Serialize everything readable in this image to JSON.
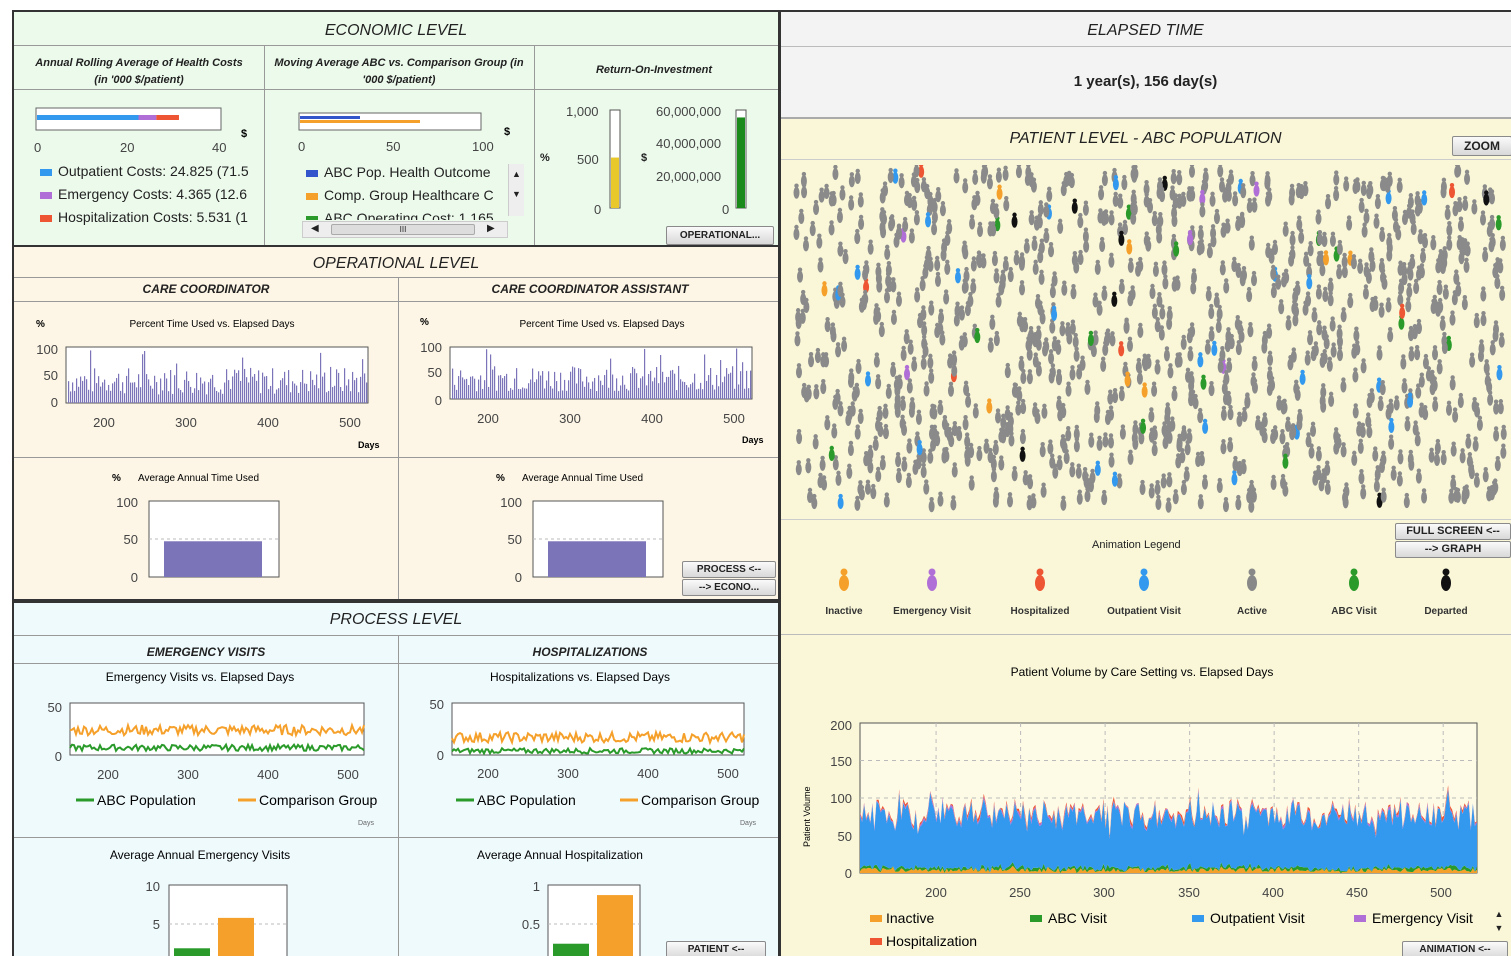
{
  "colors": {
    "econ_bg": "#ecfaec",
    "oper_bg": "#fdf6e6",
    "proc_bg": "#effafd",
    "patient_bg": "#f9f7d8",
    "outpatient": "#3399ee",
    "emergency": "#b06fd6",
    "hospital": "#ee5533",
    "abc": "#2a9a2a",
    "comparison": "#f5a02a",
    "purple_bar": "#7b74b8",
    "inactive": "#f5a02a",
    "active": "#888888",
    "departed": "#111111"
  },
  "economic": {
    "title": "ECONOMIC LEVEL",
    "col1_title": "Annual Rolling Average of Health Costs (in '000 $/patient)",
    "col2_title": "Moving Average ABC vs. Comparison Group (in '000 $/patient)",
    "col3_title": "Return-On-Investment",
    "col1_unit": "$",
    "col1_ticks": [
      "0",
      "20",
      "40"
    ],
    "col1_bars": {
      "outpatient": 24.825,
      "emergency": 4.365,
      "hospitalization": 5.531,
      "max": 45
    },
    "col1_legend": [
      "Outpatient Costs: 24.825 (71.5",
      "Emergency Costs: 4.365 (12.6",
      "Hospitalization Costs: 5.531 (1"
    ],
    "col2_unit": "$",
    "col2_ticks": [
      "0",
      "50",
      "100"
    ],
    "col2_legend": [
      "ABC Pop. Health Outcome",
      "Comp. Group Healthcare C",
      "ABC Operating Cost: 1.165"
    ],
    "col2_scroll": "III",
    "col3_pct_label": "%",
    "col3_pct_ticks": [
      "1,000",
      "500",
      "0"
    ],
    "col3_pct_value": 520,
    "col3_usd_label": "$",
    "col3_usd_ticks": [
      "60,000,000",
      "40,000,000",
      "20,000,000",
      "0"
    ],
    "col3_usd_value": 56000000,
    "operational_button": "OPERATIONAL..."
  },
  "operational": {
    "title": "OPERATIONAL LEVEL",
    "cc_title": "CARE COORDINATOR",
    "cca_title": "CARE COORDINATOR ASSISTANT",
    "pct": "%",
    "chart_title": "Percent Time Used vs. Elapsed Days",
    "y_ticks": [
      "100",
      "50",
      "0"
    ],
    "x_ticks": [
      "200",
      "300",
      "400",
      "500"
    ],
    "x_label": "Days",
    "avg_title": "Average Annual Time Used",
    "avg_ticks": [
      "100",
      "50",
      "0"
    ],
    "cc_avg": 47,
    "cca_avg": 47,
    "process_button": "PROCESS <--",
    "econo_button": "--> ECONO..."
  },
  "process": {
    "title": "PROCESS LEVEL",
    "ev_title": "EMERGENCY VISITS",
    "hosp_title": "HOSPITALIZATIONS",
    "ev_chart_title": "Emergency Visits vs. Elapsed Days",
    "hosp_chart_title": "Hospitalizations vs. Elapsed Days",
    "y_ticks": [
      "50",
      "0"
    ],
    "x_ticks": [
      "200",
      "300",
      "400",
      "500"
    ],
    "legend_abc": "ABC Population",
    "legend_comp": "Comparison Group",
    "days": "Days",
    "ev_avg_title": "Average Annual Emergency Visits",
    "hosp_avg_title": "Average Annual Hospitalization",
    "ev_avg_ticks": [
      "10",
      "5"
    ],
    "hosp_avg_ticks": [
      "1",
      "0.5"
    ],
    "ev_avg_values": {
      "abc": 2.2,
      "comparison": 6.2
    },
    "hosp_avg_values": {
      "abc": 0.28,
      "comparison": 0.92
    },
    "patient_button": "PATIENT <--"
  },
  "elapsed": {
    "title": "ELAPSED TIME",
    "value": "1 year(s), 156 day(s)"
  },
  "patient": {
    "title": "PATIENT LEVEL - ABC POPULATION",
    "zoom_button": "ZOOM",
    "fullscreen_button": "FULL SCREEN <--",
    "graph_button": "--> GRAPH",
    "animation_legend_title": "Animation Legend",
    "legend": [
      {
        "label": "Inactive",
        "icon": "person-inactive-icon",
        "color": "#f5a02a"
      },
      {
        "label": "Emergency Visit",
        "icon": "person-emergency-icon",
        "color": "#b06fd6"
      },
      {
        "label": "Hospitalized",
        "icon": "person-hospitalized-icon",
        "color": "#ee5533"
      },
      {
        "label": "Outpatient Visit",
        "icon": "person-outpatient-icon",
        "color": "#3399ee"
      },
      {
        "label": "Active",
        "icon": "person-active-icon",
        "color": "#888888"
      },
      {
        "label": "ABC Visit",
        "icon": "person-abc-icon",
        "color": "#2a9a2a"
      },
      {
        "label": "Departed",
        "icon": "person-departed-icon",
        "color": "#111111"
      }
    ],
    "volume_title": "Patient Volume by Care Setting vs. Elapsed Days",
    "volume_ylabel": "Patient Volume",
    "volume_y_ticks": [
      "200",
      "150",
      "100",
      "50",
      "0"
    ],
    "volume_x_ticks": [
      "200",
      "250",
      "300",
      "350",
      "400",
      "450",
      "500"
    ],
    "volume_legend": [
      "Inactive",
      "ABC Visit",
      "Outpatient Visit",
      "Emergency Visit",
      "Hospitalization"
    ],
    "animation_button": "ANIMATION <--"
  },
  "chart_data": [
    {
      "type": "bar",
      "title": "Annual Rolling Average of Health Costs (in '000 $/patient)",
      "categories": [
        "Outpatient Costs",
        "Emergency Costs",
        "Hospitalization Costs"
      ],
      "values": [
        24.825,
        4.365,
        5.531
      ],
      "xlim": [
        0,
        45
      ]
    },
    {
      "type": "bar",
      "title": "Return-On-Investment",
      "series": [
        {
          "name": "%",
          "values": [
            520
          ]
        },
        {
          "name": "$",
          "values": [
            56000000
          ]
        }
      ]
    },
    {
      "type": "bar",
      "title": "Percent Time Used vs. Elapsed Days",
      "xlabel": "Days",
      "ylim": [
        0,
        100
      ],
      "xlim": [
        150,
        520
      ]
    },
    {
      "type": "bar",
      "title": "Average Annual Time Used",
      "values": [
        47
      ],
      "ylim": [
        0,
        100
      ]
    },
    {
      "type": "line",
      "title": "Emergency Visits vs. Elapsed Days",
      "series": [
        {
          "name": "ABC Population",
          "values": [
            8
          ]
        },
        {
          "name": "Comparison Group",
          "values": [
            24
          ]
        }
      ],
      "ylim": [
        0,
        50
      ]
    },
    {
      "type": "line",
      "title": "Hospitalizations vs. Elapsed Days",
      "series": [
        {
          "name": "ABC Population",
          "values": [
            4
          ]
        },
        {
          "name": "Comparison Group",
          "values": [
            16
          ]
        }
      ],
      "ylim": [
        0,
        50
      ]
    },
    {
      "type": "bar",
      "title": "Average Annual Emergency Visits",
      "categories": [
        "ABC Population",
        "Comparison Group"
      ],
      "values": [
        2.2,
        6.2
      ],
      "ylim": [
        0,
        10
      ]
    },
    {
      "type": "bar",
      "title": "Average Annual Hospitalization",
      "categories": [
        "ABC Population",
        "Comparison Group"
      ],
      "values": [
        0.28,
        0.92
      ],
      "ylim": [
        0,
        1
      ]
    },
    {
      "type": "area",
      "title": "Patient Volume by Care Setting vs. Elapsed Days",
      "ylabel": "Patient Volume",
      "xlim": [
        165,
        520
      ],
      "ylim": [
        0,
        200
      ],
      "series": [
        {
          "name": "Inactive",
          "values": [
            5
          ]
        },
        {
          "name": "ABC Visit",
          "values": [
            5
          ]
        },
        {
          "name": "Outpatient Visit",
          "values": [
            80
          ]
        },
        {
          "name": "Emergency Visit",
          "values": [
            3
          ]
        },
        {
          "name": "Hospitalization",
          "values": [
            2
          ]
        }
      ]
    }
  ]
}
